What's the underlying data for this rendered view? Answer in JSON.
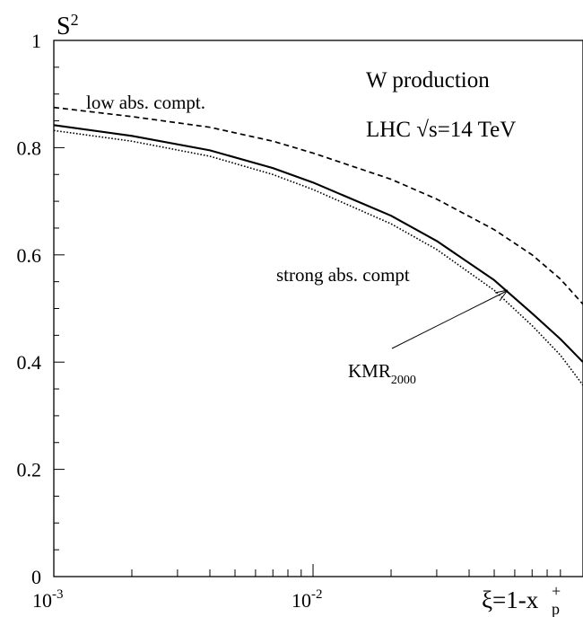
{
  "chart_data": {
    "type": "line",
    "title": "",
    "ylabel": "S",
    "ylabel_sup": "2",
    "xlabel": "ξ=1-x",
    "xlabel_sub": "p",
    "xlabel_sup": "+",
    "xscale": "log",
    "xlim": [
      0.001,
      0.11
    ],
    "ylim": [
      0,
      1
    ],
    "grid": false,
    "y_ticks": [
      {
        "value": 0,
        "label": "0"
      },
      {
        "value": 0.2,
        "label": "0.2"
      },
      {
        "value": 0.4,
        "label": "0.4"
      },
      {
        "value": 0.6,
        "label": "0.6"
      },
      {
        "value": 0.8,
        "label": "0.8"
      },
      {
        "value": 1,
        "label": "1"
      }
    ],
    "x_ticks": [
      {
        "value": 0.001,
        "base": "10",
        "exp": "-3"
      },
      {
        "value": 0.01,
        "base": "10",
        "exp": "-2"
      }
    ],
    "annotations": [
      {
        "text": "W production"
      },
      {
        "text": "LHC  √s=14 TeV"
      }
    ],
    "series": [
      {
        "name": "low abs. compt.",
        "style": "dashed",
        "x": [
          0.001,
          0.002,
          0.004,
          0.007,
          0.01,
          0.02,
          0.03,
          0.05,
          0.07,
          0.09,
          0.11
        ],
        "y": [
          0.875,
          0.858,
          0.838,
          0.812,
          0.79,
          0.741,
          0.704,
          0.647,
          0.6,
          0.555,
          0.508
        ]
      },
      {
        "name": "KMR",
        "name_sub": "2000",
        "style": "solid",
        "x": [
          0.001,
          0.002,
          0.004,
          0.007,
          0.01,
          0.02,
          0.03,
          0.05,
          0.07,
          0.09,
          0.11
        ],
        "y": [
          0.842,
          0.822,
          0.795,
          0.762,
          0.735,
          0.673,
          0.626,
          0.553,
          0.491,
          0.443,
          0.4
        ]
      },
      {
        "name": "strong abs. compt",
        "style": "dotted",
        "x": [
          0.001,
          0.002,
          0.004,
          0.007,
          0.01,
          0.02,
          0.03,
          0.05,
          0.07,
          0.09,
          0.11
        ],
        "y": [
          0.832,
          0.812,
          0.784,
          0.75,
          0.722,
          0.658,
          0.61,
          0.534,
          0.468,
          0.413,
          0.357
        ]
      }
    ]
  }
}
